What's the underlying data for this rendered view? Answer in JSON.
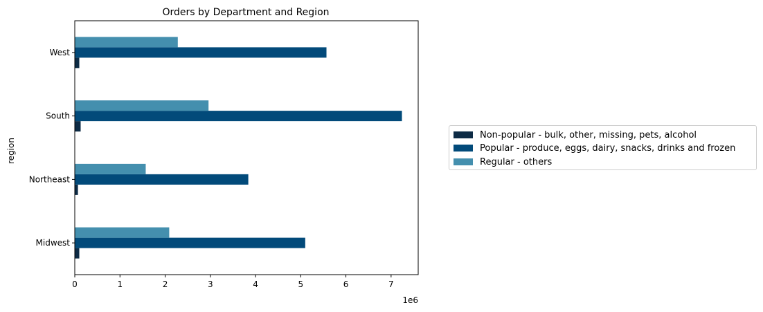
{
  "chart_data": {
    "type": "bar",
    "orientation": "horizontal",
    "title": "Orders by Department and Region",
    "ylabel": "region",
    "xlabel": "",
    "x_offset_label": "1e6",
    "categories": [
      "Midwest",
      "Northeast",
      "South",
      "West"
    ],
    "xlim": [
      0,
      7.6
    ],
    "x_ticks": [
      "0",
      "1",
      "2",
      "3",
      "4",
      "5",
      "6",
      "7"
    ],
    "grid": false,
    "legend_placement": "center-right, outside plot",
    "series": [
      {
        "name": "Non-popular - bulk, other, missing, pets, alcohol",
        "color": "#0d2b45",
        "values": [
          0.1,
          0.07,
          0.13,
          0.1
        ]
      },
      {
        "name": "Popular - produce, eggs, dairy, snacks, drinks and frozen",
        "color": "#024a7a",
        "values": [
          5.1,
          3.84,
          7.24,
          5.57
        ]
      },
      {
        "name": "Regular - others",
        "color": "#448fae",
        "values": [
          2.09,
          1.57,
          2.96,
          2.28
        ]
      }
    ]
  }
}
